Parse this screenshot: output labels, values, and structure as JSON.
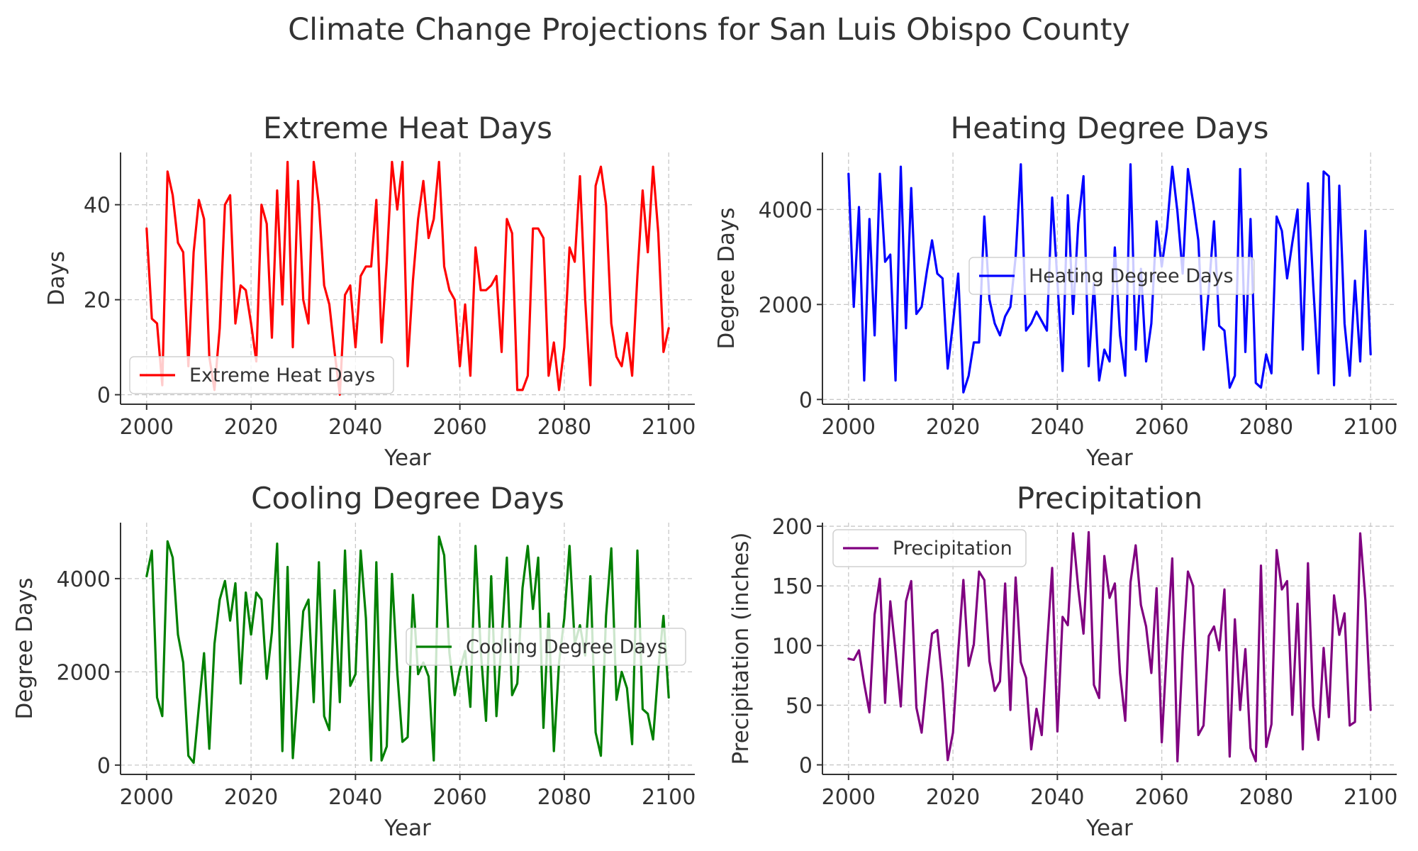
{
  "figure": {
    "title": "Climate Change Projections for San Luis Obispo County"
  },
  "chart_data": [
    {
      "type": "line",
      "title": "Extreme Heat Days",
      "xlabel": "Year",
      "ylabel": "Days",
      "xlim": [
        1995,
        2105
      ],
      "ylim": [
        -2,
        51
      ],
      "xticks": [
        2000,
        2020,
        2040,
        2060,
        2080,
        2100
      ],
      "yticks": [
        0,
        20,
        40
      ],
      "grid": true,
      "legend_position": "lower left",
      "series": [
        {
          "name": "Extreme Heat Days",
          "color": "#ff0000",
          "x_start": 2000,
          "x_step": 1,
          "values": [
            35,
            16,
            15,
            2,
            47,
            42,
            32,
            30,
            6,
            30,
            41,
            37,
            8,
            1,
            14,
            40,
            42,
            15,
            23,
            22,
            15,
            7,
            40,
            36,
            12,
            43,
            19,
            49,
            10,
            45,
            20,
            15,
            49,
            40,
            23,
            19,
            9,
            0,
            21,
            23,
            10,
            25,
            27,
            27,
            41,
            11,
            28,
            49,
            39,
            49,
            6,
            24,
            37,
            45,
            33,
            37,
            49,
            27,
            22,
            20,
            6,
            19,
            4,
            31,
            22,
            22,
            23,
            25,
            9,
            37,
            34,
            1,
            1,
            4,
            35,
            35,
            33,
            4,
            11,
            1,
            10,
            31,
            28,
            46,
            20,
            2,
            44,
            48,
            40,
            15,
            8,
            6,
            13,
            4,
            25,
            43,
            30,
            48,
            34,
            9,
            14
          ]
        }
      ]
    },
    {
      "type": "line",
      "title": "Heating Degree Days",
      "xlabel": "Year",
      "ylabel": "Degree Days",
      "xlim": [
        1995,
        2105
      ],
      "ylim": [
        -100,
        5200
      ],
      "xticks": [
        2000,
        2020,
        2040,
        2060,
        2080,
        2100
      ],
      "yticks": [
        0,
        2000,
        4000
      ],
      "grid": true,
      "legend_position": "center",
      "series": [
        {
          "name": "Heating Degree Days",
          "color": "#0000ff",
          "x_start": 2000,
          "x_step": 1,
          "values": [
            4750,
            1950,
            4050,
            400,
            3800,
            1350,
            4750,
            2900,
            3050,
            400,
            4900,
            1500,
            4450,
            1800,
            1950,
            2700,
            3350,
            2650,
            2550,
            650,
            1600,
            2650,
            150,
            500,
            1200,
            1200,
            3850,
            2100,
            1600,
            1350,
            1750,
            1950,
            3000,
            4950,
            1450,
            1600,
            1850,
            1650,
            1450,
            4250,
            2500,
            600,
            4300,
            1800,
            3700,
            4700,
            700,
            2450,
            400,
            1050,
            800,
            3200,
            1350,
            500,
            4950,
            1050,
            2750,
            800,
            1600,
            3750,
            2800,
            3600,
            4900,
            3950,
            2650,
            4850,
            4150,
            3350,
            1050,
            2300,
            3750,
            1550,
            1450,
            250,
            500,
            4850,
            1000,
            3800,
            350,
            250,
            950,
            550,
            3850,
            3550,
            2550,
            3300,
            4000,
            1050,
            4550,
            2400,
            550,
            4800,
            4700,
            300,
            4500,
            1600,
            500,
            2500,
            800,
            3550,
            950
          ]
        }
      ]
    },
    {
      "type": "line",
      "title": "Cooling Degree Days",
      "xlabel": "Year",
      "ylabel": "Degree Days",
      "xlim": [
        1995,
        2105
      ],
      "ylim": [
        -200,
        5200
      ],
      "xticks": [
        2000,
        2020,
        2040,
        2060,
        2080,
        2100
      ],
      "yticks": [
        0,
        2000,
        4000
      ],
      "grid": true,
      "legend_position": "center right",
      "series": [
        {
          "name": "Cooling Degree Days",
          "color": "#008000",
          "x_start": 2000,
          "x_step": 1,
          "values": [
            4050,
            4600,
            1450,
            1050,
            4800,
            4450,
            2800,
            2200,
            200,
            50,
            1250,
            2400,
            350,
            2600,
            3550,
            3950,
            3100,
            3900,
            1750,
            3700,
            2800,
            3700,
            3550,
            1850,
            2850,
            4750,
            300,
            4250,
            150,
            1700,
            3300,
            3550,
            1350,
            4350,
            1050,
            750,
            3750,
            1350,
            4600,
            1700,
            1950,
            4600,
            3150,
            100,
            4350,
            100,
            400,
            4100,
            2000,
            500,
            600,
            3650,
            1950,
            2200,
            1900,
            100,
            4900,
            4500,
            2400,
            1500,
            2050,
            2450,
            1250,
            4700,
            2450,
            950,
            4050,
            1050,
            2700,
            4450,
            1500,
            1750,
            3800,
            4700,
            3350,
            4450,
            800,
            3250,
            300,
            2200,
            3150,
            4700,
            2600,
            3000,
            2350,
            4050,
            700,
            200,
            3200,
            4650,
            1400,
            2000,
            1650,
            450,
            4600,
            1200,
            1100,
            550,
            2050,
            3200,
            1450
          ]
        }
      ]
    },
    {
      "type": "line",
      "title": "Precipitation",
      "xlabel": "Year",
      "ylabel": "Precipitation (inches)",
      "xlim": [
        1995,
        2105
      ],
      "ylim": [
        -8,
        203
      ],
      "xticks": [
        2000,
        2020,
        2040,
        2060,
        2080,
        2100
      ],
      "yticks": [
        0,
        50,
        100,
        150,
        200
      ],
      "grid": true,
      "legend_position": "upper left",
      "series": [
        {
          "name": "Precipitation",
          "color": "#800080",
          "x_start": 2000,
          "x_step": 1,
          "values": [
            89,
            88,
            96,
            68,
            44,
            126,
            156,
            52,
            137,
            95,
            49,
            137,
            154,
            48,
            27,
            72,
            110,
            113,
            68,
            4,
            27,
            95,
            155,
            83,
            101,
            162,
            155,
            87,
            62,
            70,
            152,
            46,
            157,
            86,
            73,
            13,
            47,
            25,
            98,
            165,
            28,
            124,
            117,
            194,
            148,
            110,
            195,
            67,
            56,
            175,
            140,
            152,
            77,
            37,
            153,
            184,
            134,
            116,
            77,
            148,
            19,
            100,
            173,
            3,
            95,
            162,
            150,
            25,
            33,
            108,
            116,
            96,
            147,
            7,
            122,
            46,
            97,
            14,
            3,
            167,
            15,
            34,
            180,
            147,
            154,
            42,
            135,
            13,
            169,
            49,
            21,
            98,
            40,
            142,
            109,
            127,
            33,
            36,
            194,
            138,
            46
          ]
        }
      ]
    }
  ]
}
